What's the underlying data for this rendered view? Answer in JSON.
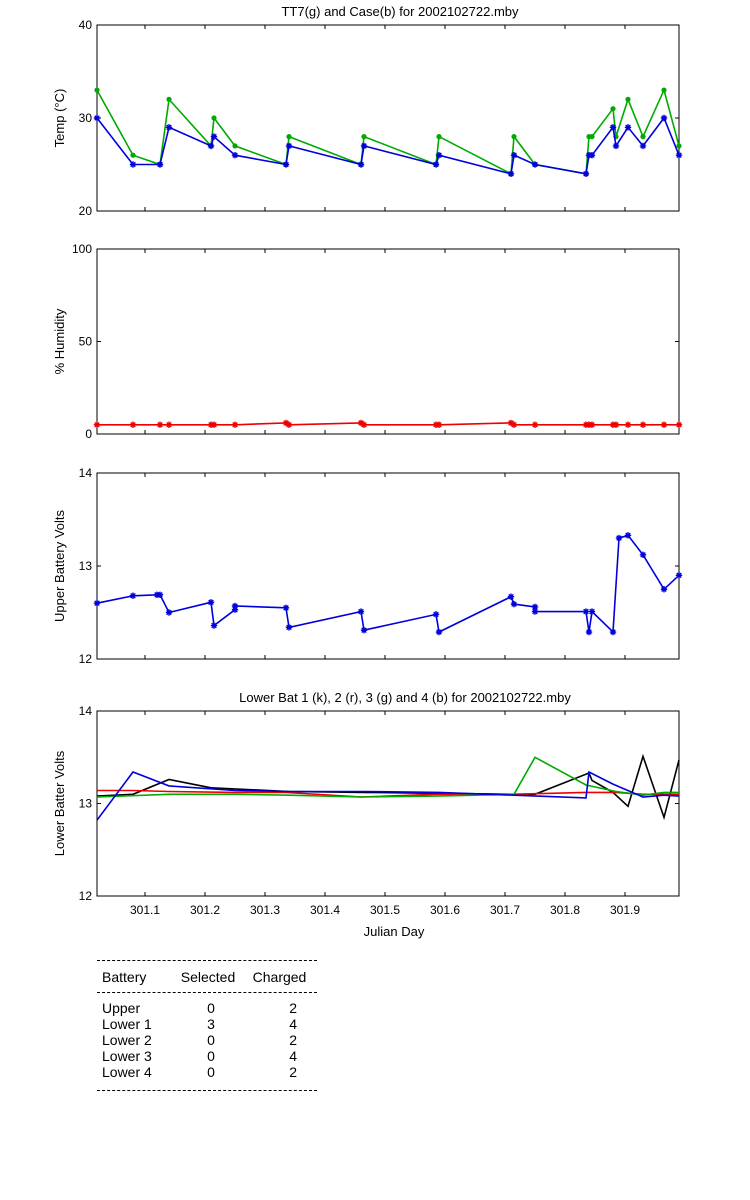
{
  "chart_data": [
    {
      "type": "line",
      "title": "TT7(g) and Case(b) for 2002102722.mby",
      "xlabel": "",
      "ylabel": "Temp  (°C)",
      "xlim": [
        301.02,
        301.99
      ],
      "ylim": [
        20,
        40
      ],
      "yticks": [
        "20",
        "30",
        "40"
      ],
      "series": [
        {
          "name": "TT7",
          "color": "#00aa00",
          "marker": "dot",
          "x": [
            301.02,
            301.08,
            301.125,
            301.14,
            301.21,
            301.215,
            301.25,
            301.335,
            301.34,
            301.46,
            301.465,
            301.585,
            301.59,
            301.71,
            301.715,
            301.75,
            301.835,
            301.84,
            301.845,
            301.88,
            301.885,
            301.905,
            301.93,
            301.965,
            301.99
          ],
          "y": [
            33,
            26,
            25,
            32,
            27,
            30,
            27,
            25,
            28,
            25,
            28,
            25,
            28,
            24,
            28,
            25,
            24,
            28,
            28,
            31,
            28,
            32,
            28,
            33,
            27
          ]
        },
        {
          "name": "Case",
          "color": "#0000dd",
          "marker": "star",
          "x": [
            301.02,
            301.08,
            301.125,
            301.14,
            301.21,
            301.215,
            301.25,
            301.335,
            301.34,
            301.46,
            301.465,
            301.585,
            301.59,
            301.71,
            301.715,
            301.75,
            301.835,
            301.84,
            301.845,
            301.88,
            301.885,
            301.905,
            301.93,
            301.965,
            301.99
          ],
          "y": [
            30,
            25,
            25,
            29,
            27,
            28,
            26,
            25,
            27,
            25,
            27,
            25,
            26,
            24,
            26,
            25,
            24,
            26,
            26,
            29,
            27,
            29,
            27,
            30,
            26
          ]
        }
      ]
    },
    {
      "type": "line",
      "title": "",
      "xlabel": "",
      "ylabel": "% Humidity",
      "xlim": [
        301.02,
        301.99
      ],
      "ylim": [
        0,
        100
      ],
      "yticks": [
        "0",
        "50",
        "100"
      ],
      "series": [
        {
          "name": "Humidity",
          "color": "#ee0000",
          "marker": "star",
          "x": [
            301.02,
            301.08,
            301.125,
            301.14,
            301.21,
            301.215,
            301.25,
            301.335,
            301.34,
            301.46,
            301.465,
            301.585,
            301.59,
            301.71,
            301.715,
            301.75,
            301.835,
            301.84,
            301.845,
            301.88,
            301.885,
            301.905,
            301.93,
            301.965,
            301.99
          ],
          "y": [
            5,
            5,
            5,
            5,
            5,
            5,
            5,
            6,
            5,
            6,
            5,
            5,
            5,
            6,
            5,
            5,
            5,
            5,
            5,
            5,
            5,
            5,
            5,
            5,
            5
          ]
        }
      ]
    },
    {
      "type": "line",
      "title": "",
      "xlabel": "",
      "ylabel": "Upper Battery Volts",
      "xlim": [
        301.02,
        301.99
      ],
      "ylim": [
        12,
        14
      ],
      "yticks": [
        "12",
        "13",
        "14"
      ],
      "series": [
        {
          "name": "Upper",
          "color": "#0000dd",
          "marker": "star",
          "x": [
            301.02,
            301.08,
            301.12,
            301.125,
            301.14,
            301.21,
            301.215,
            301.25,
            301.25,
            301.335,
            301.34,
            301.46,
            301.465,
            301.585,
            301.59,
            301.71,
            301.715,
            301.75,
            301.75,
            301.835,
            301.84,
            301.845,
            301.88,
            301.89,
            301.905,
            301.93,
            301.965,
            301.99
          ],
          "y": [
            12.6,
            12.68,
            12.69,
            12.69,
            12.5,
            12.61,
            12.36,
            12.53,
            12.57,
            12.55,
            12.34,
            12.51,
            12.31,
            12.48,
            12.29,
            12.67,
            12.59,
            12.56,
            12.51,
            12.51,
            12.29,
            12.51,
            12.29,
            13.3,
            13.33,
            13.12,
            12.75,
            12.9
          ]
        }
      ]
    },
    {
      "type": "line",
      "title": "Lower Bat 1 (k), 2 (r), 3 (g) and 4 (b) for 2002102722.mby",
      "xlabel": "Julian Day",
      "ylabel": "Lower Batter Volts",
      "xlim": [
        301.02,
        301.99
      ],
      "ylim": [
        12,
        14
      ],
      "yticks": [
        "12",
        "13",
        "14"
      ],
      "xticks": [
        "301.1",
        "301.2",
        "301.3",
        "301.4",
        "301.5",
        "301.6",
        "301.7",
        "301.8",
        "301.9"
      ],
      "series": [
        {
          "name": "Lower 1",
          "color": "#000000",
          "x": [
            301.02,
            301.08,
            301.14,
            301.21,
            301.34,
            301.465,
            301.59,
            301.715,
            301.75,
            301.84,
            301.845,
            301.88,
            301.905,
            301.93,
            301.965,
            301.99
          ],
          "y": [
            13.08,
            13.1,
            13.26,
            13.17,
            13.13,
            13.12,
            13.11,
            13.1,
            13.1,
            13.33,
            13.25,
            13.12,
            12.97,
            13.51,
            12.85,
            13.47
          ]
        },
        {
          "name": "Lower 2",
          "color": "#ee0000",
          "x": [
            301.02,
            301.08,
            301.14,
            301.25,
            301.335,
            301.46,
            301.585,
            301.71,
            301.835,
            301.885,
            301.93,
            301.99
          ],
          "y": [
            13.14,
            13.14,
            13.13,
            13.12,
            13.12,
            13.07,
            13.1,
            13.1,
            13.12,
            13.12,
            13.1,
            13.1
          ]
        },
        {
          "name": "Lower 3",
          "color": "#00aa00",
          "x": [
            301.02,
            301.14,
            301.25,
            301.34,
            301.46,
            301.585,
            301.715,
            301.75,
            301.835,
            301.885,
            301.93,
            301.965,
            301.99
          ],
          "y": [
            13.07,
            13.1,
            13.1,
            13.09,
            13.07,
            13.08,
            13.1,
            13.5,
            13.2,
            13.13,
            13.09,
            13.12,
            13.12
          ]
        },
        {
          "name": "Lower 4",
          "color": "#0000dd",
          "x": [
            301.02,
            301.08,
            301.14,
            301.25,
            301.34,
            301.465,
            301.59,
            301.715,
            301.835,
            301.84,
            301.88,
            301.93,
            301.965,
            301.99
          ],
          "y": [
            12.82,
            13.34,
            13.19,
            13.14,
            13.13,
            13.13,
            13.12,
            13.09,
            13.06,
            13.34,
            13.21,
            13.07,
            13.09,
            13.08
          ]
        }
      ]
    }
  ],
  "battery_table": {
    "headers": {
      "battery": "Battery",
      "selected": "Selected",
      "charged": "Charged"
    },
    "rows": [
      {
        "battery": "Upper",
        "selected": "0",
        "charged": "2"
      },
      {
        "battery": "Lower 1",
        "selected": "3",
        "charged": "4"
      },
      {
        "battery": "Lower 2",
        "selected": "0",
        "charged": "2"
      },
      {
        "battery": "Lower 3",
        "selected": "0",
        "charged": "4"
      },
      {
        "battery": "Lower 4",
        "selected": "0",
        "charged": "2"
      }
    ]
  }
}
